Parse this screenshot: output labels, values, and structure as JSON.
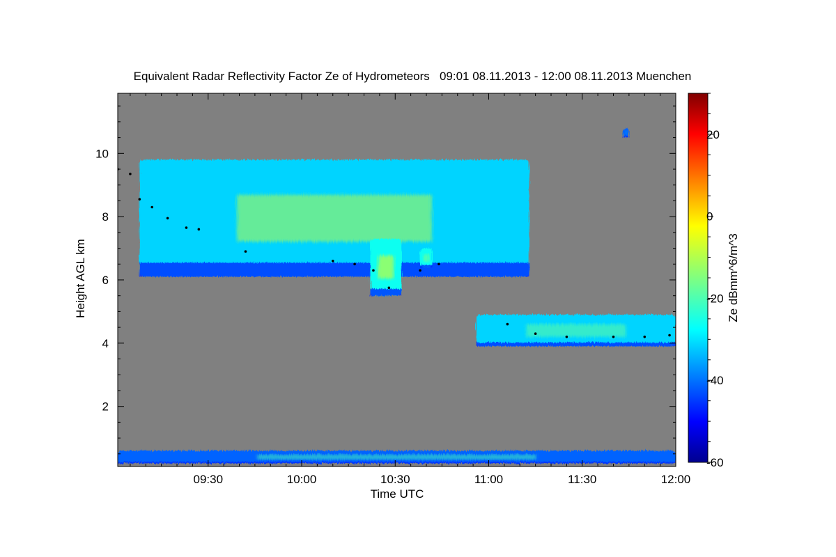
{
  "chart_data": {
    "type": "heatmap",
    "title": "Equivalent Radar Reflectivity Factor Ze of Hydrometeors   09:01 08.11.2013 - 12:00 08.11.2013 Muenchen",
    "xlabel": "Time UTC",
    "ylabel": "Height AGL km",
    "x_range": [
      "09:01",
      "12:00"
    ],
    "x_ticks": [
      "09:30",
      "10:00",
      "10:30",
      "11:00",
      "11:30",
      "12:00"
    ],
    "ylim": [
      0.1,
      11.9
    ],
    "y_ticks": [
      2,
      4,
      6,
      8,
      10
    ],
    "colorbar": {
      "label": "Ze dBmm^6/m^3",
      "range": [
        -60,
        30
      ],
      "ticks": [
        -60,
        -40,
        -20,
        0,
        20
      ],
      "colormap": "jet"
    },
    "background_color": "#808080",
    "echo_regions": [
      {
        "name": "upper cloud layer",
        "time_start": "09:08",
        "time_end": "11:13",
        "height_bottom_km": 6.1,
        "height_top_km": 9.8,
        "ze_typical_dbz": -30,
        "ze_max_dbz": -10
      },
      {
        "name": "fall streak",
        "time_start": "10:22",
        "time_end": "10:32",
        "height_bottom_km": 5.5,
        "height_top_km": 7.3,
        "ze_typical_dbz": -25,
        "ze_max_dbz": -5
      },
      {
        "name": "small cell",
        "time_start": "10:38",
        "time_end": "10:42",
        "height_bottom_km": 6.4,
        "height_top_km": 7.0,
        "ze_typical_dbz": -25,
        "ze_max_dbz": -15
      },
      {
        "name": "lower cloud layer",
        "time_start": "10:56",
        "time_end": "12:00",
        "height_bottom_km": 3.9,
        "height_top_km": 4.9,
        "ze_typical_dbz": -30,
        "ze_max_dbz": -18
      },
      {
        "name": "isolated echo",
        "time_start": "11:43",
        "time_end": "11:45",
        "height_bottom_km": 10.5,
        "height_top_km": 10.8,
        "ze_typical_dbz": -40,
        "ze_max_dbz": -35
      },
      {
        "name": "ground clutter",
        "time_start": "09:01",
        "time_end": "12:00",
        "height_bottom_km": 0.2,
        "height_top_km": 0.6,
        "ze_typical_dbz": -40,
        "ze_max_dbz": -20
      }
    ],
    "black_trace": [
      {
        "time": "09:01",
        "height_km": 9.5
      },
      {
        "time": "09:05",
        "height_km": 9.35
      },
      {
        "time": "09:08",
        "height_km": 8.55
      },
      {
        "time": "09:12",
        "height_km": 8.3
      },
      {
        "time": "09:17",
        "height_km": 7.95
      },
      {
        "time": "09:23",
        "height_km": 7.65
      },
      {
        "time": "09:27",
        "height_km": 7.6
      },
      {
        "time": "09:42",
        "height_km": 6.9
      },
      {
        "time": "10:10",
        "height_km": 6.6
      },
      {
        "time": "10:17",
        "height_km": 6.5
      },
      {
        "time": "10:23",
        "height_km": 6.3
      },
      {
        "time": "10:28",
        "height_km": 5.75
      },
      {
        "time": "10:38",
        "height_km": 6.3
      },
      {
        "time": "10:44",
        "height_km": 6.5
      },
      {
        "time": "11:06",
        "height_km": 4.6
      },
      {
        "time": "11:15",
        "height_km": 4.3
      },
      {
        "time": "11:25",
        "height_km": 4.2
      },
      {
        "time": "11:40",
        "height_km": 4.2
      },
      {
        "time": "11:50",
        "height_km": 4.2
      },
      {
        "time": "11:58",
        "height_km": 4.25
      }
    ]
  }
}
